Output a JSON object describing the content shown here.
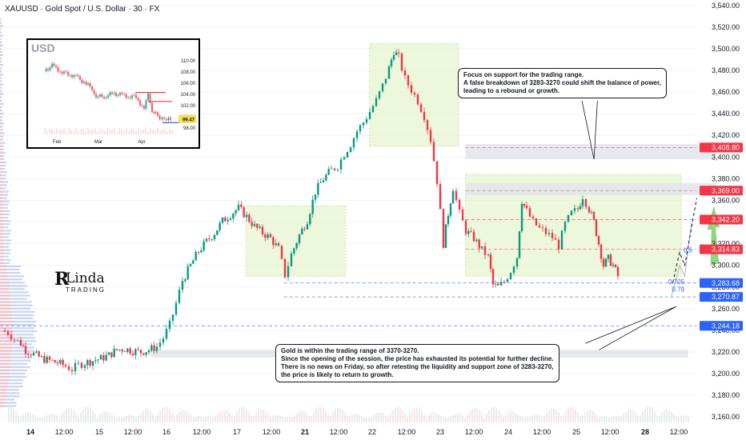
{
  "symbol_title": "XAUUSD · Gold Spot / U.S. Dollar · 30 · FX",
  "callouts": {
    "top": {
      "lines": [
        "Focus on support for the trading range.",
        "A false breakdown of 3283-3270 could shift the balance of power,",
        "leading to a rebound or growth."
      ]
    },
    "bottom": {
      "lines": [
        "Gold is within the trading range of 3370-3270.",
        "Since the opening of the session, the price has exhausted its potential for further decline.",
        "There is no news on Friday, so after retesting the liquidity and support zone of 3283-3270,",
        "the price is likely to return to growth."
      ]
    }
  },
  "logo": {
    "mark": "R",
    "main": "Linda",
    "sub": "TRADING"
  },
  "colors": {
    "bull": "#089981",
    "bear": "#f23645",
    "range_box": "#e6f4cc",
    "red_level": "#f23645",
    "blue_level": "#2962ff",
    "grey_zone": "#e0e3eb",
    "arrow": "#7dcf6a"
  },
  "chart_data": {
    "type": "candlestick",
    "ylim": [
      3155,
      3545
    ],
    "y_ticks": [
      "3,160.00",
      "3,180.00",
      "3,200.00",
      "3,220.00",
      "3,240.00",
      "3,260.00",
      "3,280.00",
      "3,300.00",
      "3,320.00",
      "3,340.00",
      "3,360.00",
      "3,380.00",
      "3,400.00",
      "3,420.00",
      "3,440.00",
      "3,460.00",
      "3,480.00",
      "3,500.00",
      "3,520.00",
      "3,540.00"
    ],
    "x_tick_labels": [
      "14",
      "12:00",
      "15",
      "12:00",
      "16",
      "12:00",
      "17",
      "12:00",
      "21",
      "12:00",
      "22",
      "12:00",
      "23",
      "12:00",
      "24",
      "12:00",
      "25",
      "12:00",
      "28",
      "12:00"
    ],
    "x_tick_bold": [
      "14",
      "21",
      "28"
    ],
    "path_points": [
      [
        0,
        3240
      ],
      [
        8,
        3238
      ],
      [
        16,
        3232
      ],
      [
        24,
        3228
      ],
      [
        30,
        3222
      ],
      [
        40,
        3218
      ],
      [
        50,
        3214
      ],
      [
        60,
        3212
      ],
      [
        70,
        3210
      ],
      [
        80,
        3207
      ],
      [
        88,
        3204
      ],
      [
        96,
        3208
      ],
      [
        104,
        3210
      ],
      [
        114,
        3212
      ],
      [
        124,
        3214
      ],
      [
        134,
        3217
      ],
      [
        144,
        3222
      ],
      [
        154,
        3223
      ],
      [
        164,
        3221
      ],
      [
        174,
        3220
      ],
      [
        184,
        3222
      ],
      [
        194,
        3225
      ],
      [
        202,
        3233
      ],
      [
        210,
        3245
      ],
      [
        218,
        3265
      ],
      [
        226,
        3286
      ],
      [
        236,
        3300
      ],
      [
        246,
        3313
      ],
      [
        256,
        3322
      ],
      [
        266,
        3330
      ],
      [
        276,
        3341
      ],
      [
        286,
        3347
      ],
      [
        296,
        3353
      ],
      [
        306,
        3345
      ],
      [
        316,
        3336
      ],
      [
        326,
        3330
      ],
      [
        336,
        3325
      ],
      [
        346,
        3315
      ],
      [
        354,
        3291
      ],
      [
        362,
        3310
      ],
      [
        372,
        3328
      ],
      [
        382,
        3342
      ],
      [
        392,
        3368
      ],
      [
        402,
        3380
      ],
      [
        412,
        3388
      ],
      [
        420,
        3392
      ],
      [
        428,
        3403
      ],
      [
        436,
        3412
      ],
      [
        444,
        3424
      ],
      [
        452,
        3432
      ],
      [
        460,
        3442
      ],
      [
        468,
        3452
      ],
      [
        476,
        3466
      ],
      [
        484,
        3482
      ],
      [
        490,
        3498
      ],
      [
        496,
        3492
      ],
      [
        504,
        3472
      ],
      [
        512,
        3462
      ],
      [
        520,
        3452
      ],
      [
        528,
        3438
      ],
      [
        536,
        3416
      ],
      [
        544,
        3378
      ],
      [
        552,
        3320
      ],
      [
        558,
        3348
      ],
      [
        564,
        3372
      ],
      [
        572,
        3348
      ],
      [
        580,
        3332
      ],
      [
        590,
        3325
      ],
      [
        600,
        3314
      ],
      [
        608,
        3308
      ],
      [
        614,
        3282
      ],
      [
        620,
        3280
      ],
      [
        628,
        3285
      ],
      [
        636,
        3295
      ],
      [
        644,
        3308
      ],
      [
        650,
        3360
      ],
      [
        656,
        3350
      ],
      [
        664,
        3340
      ],
      [
        672,
        3334
      ],
      [
        680,
        3330
      ],
      [
        688,
        3326
      ],
      [
        696,
        3318
      ],
      [
        704,
        3338
      ],
      [
        712,
        3348
      ],
      [
        720,
        3352
      ],
      [
        726,
        3364
      ],
      [
        734,
        3352
      ],
      [
        740,
        3340
      ],
      [
        746,
        3320
      ],
      [
        752,
        3300
      ],
      [
        758,
        3306
      ],
      [
        764,
        3300
      ],
      [
        770,
        3290
      ]
    ],
    "levels_red": [
      3408.8,
      3369.0,
      3342.2,
      3314.83
    ],
    "levels_blue": [
      3283.68,
      3270.87,
      3244.18
    ],
    "level_labels": {
      "3408.80": "3,408.80",
      "3369.00": "3,369.00",
      "3342.20": "3,342.20",
      "3314.83": "3,314.83",
      "3283.68": "3,283.68",
      "3270.87": "3,270.87",
      "3244.18": "3,244.18"
    },
    "fib_labels": [
      "0.5",
      "0.705",
      "0.79"
    ],
    "range_boxes": [
      {
        "x0_day": 6.3,
        "x1_day": 9.2,
        "y0": 3290,
        "y1": 3355
      },
      {
        "x0_day": 9.9,
        "x1_day": 12.5,
        "y0": 3410,
        "y1": 3505
      },
      {
        "x0_day": 12.7,
        "x1_day": 19.0,
        "y0": 3290,
        "y1": 3384
      }
    ],
    "grey_zones": [
      {
        "x0_day": 12.7,
        "x1_day": 20.0,
        "y0": 3398,
        "y1": 3412
      },
      {
        "x0_day": 12.7,
        "x1_day": 20.0,
        "y0": 3365,
        "y1": 3376
      },
      {
        "x0_day": 3.5,
        "x1_day": 19.2,
        "y0": 3215,
        "y1": 3222
      }
    ],
    "inset": {
      "title": "USD",
      "type": "candlestick",
      "y_ticks": [
        "110.00",
        "108.00",
        "106.00",
        "104.00",
        "102.00",
        "100.00",
        "98.00"
      ],
      "x_labels": [
        "Feb",
        "Mar",
        "Apr"
      ],
      "last_value": "99.47",
      "ylim": [
        97,
        111
      ]
    }
  }
}
